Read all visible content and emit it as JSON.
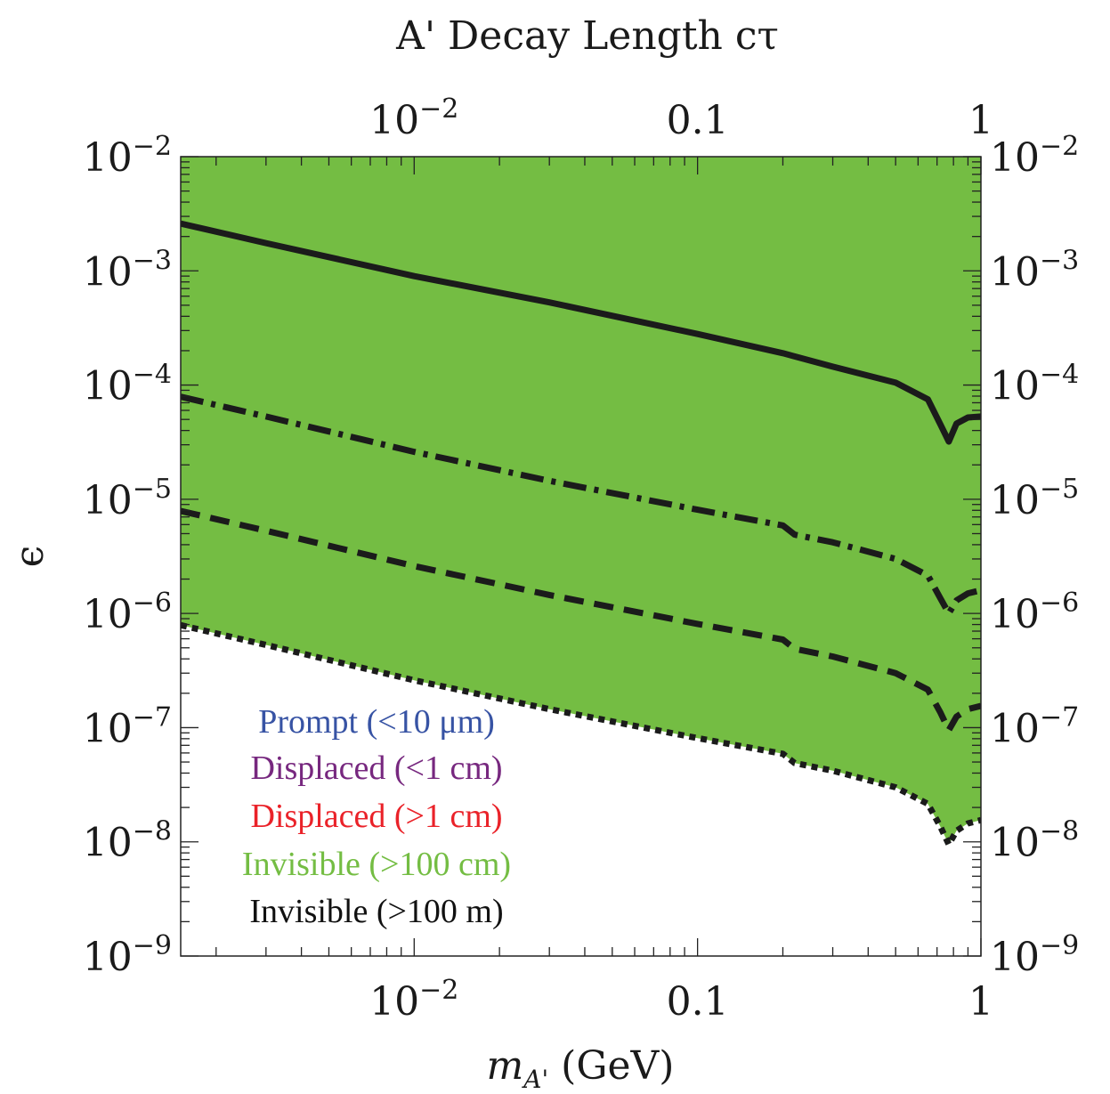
{
  "chart_data": {
    "type": "area",
    "title": "A' Decay Length cτ",
    "xlabel": {
      "main": "m",
      "sub": "A'",
      "unit": " (GeV)"
    },
    "ylabel": "ϵ",
    "xscale": "log",
    "yscale": "log",
    "xlim": [
      0.0015,
      1
    ],
    "ylim": [
      1e-09,
      0.01
    ],
    "grid": false,
    "legend_position": "bottom-left",
    "x_ticks_bottom": [
      {
        "value": 0.01,
        "base": "10",
        "exp": "−2",
        "plain": ""
      },
      {
        "value": 0.1,
        "base": "",
        "exp": "",
        "plain": "0.1"
      },
      {
        "value": 1,
        "base": "",
        "exp": "",
        "plain": "1"
      }
    ],
    "x_ticks_top": [
      {
        "value": 0.01,
        "base": "10",
        "exp": "−2",
        "plain": ""
      },
      {
        "value": 0.1,
        "base": "",
        "exp": "",
        "plain": "0.1"
      },
      {
        "value": 1,
        "base": "",
        "exp": "",
        "plain": "1"
      }
    ],
    "y_ticks": [
      {
        "value": 0.01,
        "base": "10",
        "exp": "−2"
      },
      {
        "value": 0.001,
        "base": "10",
        "exp": "−3"
      },
      {
        "value": 0.0001,
        "base": "10",
        "exp": "−4"
      },
      {
        "value": 1e-05,
        "base": "10",
        "exp": "−5"
      },
      {
        "value": 1e-06,
        "base": "10",
        "exp": "−6"
      },
      {
        "value": 1e-07,
        "base": "10",
        "exp": "−7"
      },
      {
        "value": 1e-08,
        "base": "10",
        "exp": "−8"
      },
      {
        "value": 1e-09,
        "base": "10",
        "exp": "−9"
      }
    ],
    "series": [
      {
        "name": "Prompt (<10 μm)",
        "color": "#3753a4",
        "line_style": "solid",
        "boundary_x": [
          0.0015,
          0.003,
          0.01,
          0.03,
          0.1,
          0.2,
          0.3,
          0.5,
          0.65,
          0.72,
          0.77,
          0.82,
          0.9,
          1.0
        ],
        "boundary_y": [
          0.0026,
          0.00175,
          0.0009,
          0.00053,
          0.00028,
          0.00019,
          0.000145,
          0.000105,
          7.5e-05,
          4.5e-05,
          3.2e-05,
          4.6e-05,
          5.2e-05,
          5.3e-05
        ]
      },
      {
        "name": "Displaced (<1 cm)",
        "color": "#77287f",
        "line_style": "dashdot",
        "boundary_x": [
          0.0015,
          0.003,
          0.01,
          0.03,
          0.1,
          0.2,
          0.22,
          0.3,
          0.5,
          0.65,
          0.72,
          0.77,
          0.82,
          0.9,
          1.0
        ],
        "boundary_y": [
          7.9e-05,
          5.3e-05,
          2.6e-05,
          1.45e-05,
          8.1e-06,
          5.9e-06,
          4.9e-06,
          4.2e-06,
          3e-06,
          2.15e-06,
          1.35e-06,
          1e-06,
          1.3e-06,
          1.5e-06,
          1.6e-06
        ]
      },
      {
        "name": "Displaced (>1 cm)",
        "color": "#ea2229",
        "line_style": "dashed",
        "boundary_x": [
          0.0015,
          0.003,
          0.01,
          0.03,
          0.1,
          0.2,
          0.22,
          0.3,
          0.5,
          0.65,
          0.72,
          0.77,
          0.82,
          0.9,
          1.0
        ],
        "boundary_y": [
          7.9e-06,
          5.3e-06,
          2.6e-06,
          1.45e-06,
          8.1e-07,
          5.9e-07,
          4.9e-07,
          4.2e-07,
          3e-07,
          2.15e-07,
          1.35e-07,
          9.5e-08,
          1.25e-07,
          1.45e-07,
          1.55e-07
        ]
      },
      {
        "name": "Invisible (>100 cm)",
        "color": "#74bd43",
        "line_style": "dotted",
        "boundary_x": [
          0.0015,
          0.003,
          0.01,
          0.03,
          0.1,
          0.2,
          0.22,
          0.3,
          0.5,
          0.65,
          0.72,
          0.77,
          0.82,
          0.9,
          1.0
        ],
        "boundary_y": [
          7.9e-07,
          5.3e-07,
          2.6e-07,
          1.45e-07,
          8.1e-08,
          5.9e-08,
          4.9e-08,
          4.2e-08,
          3e-08,
          2.15e-08,
          1.35e-08,
          9.5e-09,
          1.25e-08,
          1.45e-08,
          1.55e-08
        ]
      },
      {
        "name": "Invisible (>100 m)",
        "color": "#ffffff",
        "text_color": "#111111",
        "line_style": "none"
      }
    ],
    "legend": [
      {
        "label": "Prompt (<10 μm)",
        "color": "#3753a4"
      },
      {
        "label": "Displaced (<1 cm)",
        "color": "#77287f"
      },
      {
        "label": "Displaced (>1 cm)",
        "color": "#ea2229"
      },
      {
        "label": "Invisible (>100 cm)",
        "color": "#74bd43"
      },
      {
        "label": "Invisible (>100 m)",
        "color": "#111111"
      }
    ]
  }
}
